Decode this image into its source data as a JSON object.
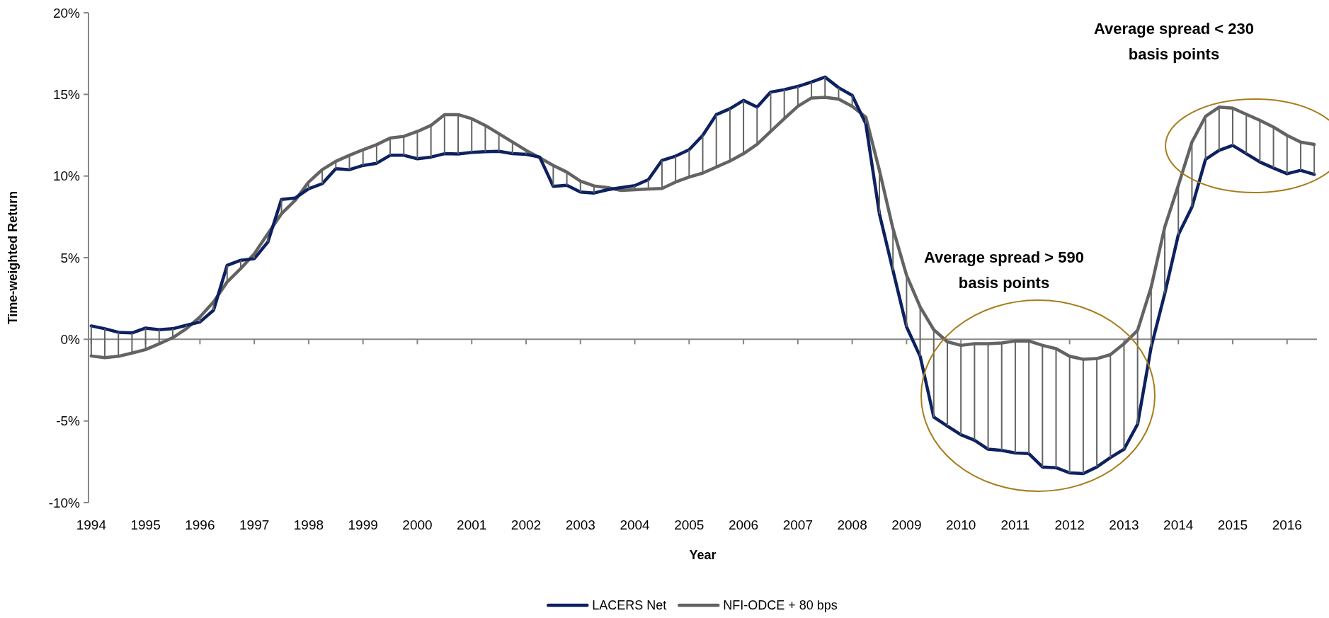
{
  "chart_data": {
    "type": "line",
    "xlabel": "Year",
    "ylabel": "Time-weighted Return",
    "x": [
      1994,
      1994.25,
      1994.5,
      1994.75,
      1995,
      1995.25,
      1995.5,
      1995.75,
      1996,
      1996.25,
      1996.5,
      1996.75,
      1997,
      1997.25,
      1997.5,
      1997.75,
      1998,
      1998.25,
      1998.5,
      1998.75,
      1999,
      1999.25,
      1999.5,
      1999.75,
      2000,
      2000.25,
      2000.5,
      2000.75,
      2001,
      2001.25,
      2001.5,
      2001.75,
      2002,
      2002.25,
      2002.5,
      2002.75,
      2003,
      2003.25,
      2003.5,
      2003.75,
      2004,
      2004.25,
      2004.5,
      2004.75,
      2005,
      2005.25,
      2005.5,
      2005.75,
      2006,
      2006.25,
      2006.5,
      2006.75,
      2007,
      2007.25,
      2007.5,
      2007.75,
      2008,
      2008.25,
      2008.5,
      2008.75,
      2009,
      2009.25,
      2009.5,
      2009.75,
      2010,
      2010.25,
      2010.5,
      2010.75,
      2011,
      2011.25,
      2011.5,
      2011.75,
      2012,
      2012.25,
      2012.5,
      2012.75,
      2013,
      2013.25,
      2013.5,
      2013.75,
      2014,
      2014.25,
      2014.5,
      2014.75,
      2015,
      2015.25,
      2015.5,
      2015.75,
      2016,
      2016.25,
      2016.5
    ],
    "series": [
      {
        "name": "LACERS Net",
        "color": "#0d2161",
        "values": [
          0.82,
          0.65,
          0.43,
          0.39,
          0.69,
          0.59,
          0.65,
          0.86,
          1.06,
          1.78,
          4.53,
          4.84,
          4.94,
          5.96,
          8.57,
          8.65,
          9.22,
          9.53,
          10.45,
          10.39,
          10.65,
          10.78,
          11.27,
          11.27,
          11.06,
          11.16,
          11.37,
          11.35,
          11.45,
          11.49,
          11.51,
          11.37,
          11.33,
          11.16,
          9.37,
          9.43,
          9.02,
          8.96,
          9.16,
          9.29,
          9.41,
          9.78,
          10.96,
          11.22,
          11.61,
          12.49,
          13.76,
          14.12,
          14.63,
          14.22,
          15.14,
          15.29,
          15.49,
          15.76,
          16.06,
          15.41,
          14.94,
          13.2,
          7.69,
          4.22,
          0.76,
          -1.04,
          -4.76,
          -5.31,
          -5.84,
          -6.18,
          -6.73,
          -6.8,
          -6.96,
          -7.0,
          -7.82,
          -7.86,
          -8.18,
          -8.22,
          -7.82,
          -7.24,
          -6.73,
          -5.2,
          -0.47,
          2.8,
          6.41,
          8.1,
          11.02,
          11.57,
          11.88,
          11.37,
          10.86,
          10.49,
          10.14,
          10.35,
          10.1
        ]
      },
      {
        "name": "NFI-ODCE + 80 bps",
        "color": "#636363",
        "values": [
          -1.02,
          -1.12,
          -1.04,
          -0.84,
          -0.63,
          -0.27,
          0.1,
          0.65,
          1.37,
          2.29,
          3.51,
          4.33,
          5.24,
          6.47,
          7.69,
          8.51,
          9.63,
          10.39,
          10.9,
          11.27,
          11.61,
          11.92,
          12.33,
          12.43,
          12.73,
          13.1,
          13.76,
          13.76,
          13.51,
          13.1,
          12.59,
          12.08,
          11.57,
          11.12,
          10.65,
          10.24,
          9.69,
          9.39,
          9.29,
          9.12,
          9.16,
          9.2,
          9.24,
          9.63,
          9.94,
          10.18,
          10.55,
          10.92,
          11.37,
          11.94,
          12.73,
          13.51,
          14.27,
          14.78,
          14.82,
          14.71,
          14.27,
          13.61,
          10.35,
          6.78,
          3.92,
          1.98,
          0.59,
          -0.15,
          -0.37,
          -0.27,
          -0.27,
          -0.22,
          -0.1,
          -0.1,
          -0.37,
          -0.57,
          -1.04,
          -1.22,
          -1.18,
          -0.94,
          -0.27,
          0.55,
          3.2,
          6.88,
          9.43,
          12.08,
          13.65,
          14.22,
          14.16,
          13.78,
          13.41,
          13.0,
          12.49,
          12.08,
          11.94
        ],
        "errors": [
          [
            -1.02,
            0.82
          ],
          [
            -1.12,
            0.65
          ],
          [
            -1.04,
            0.43
          ],
          [
            -0.84,
            0.39
          ],
          [
            -0.63,
            0.69
          ],
          [
            -0.27,
            0.59
          ],
          [
            0.1,
            0.65
          ],
          [
            0.65,
            0.86
          ],
          [
            1.06,
            1.37
          ],
          [
            1.78,
            2.29
          ],
          [
            3.51,
            4.53
          ],
          [
            4.33,
            4.84
          ],
          [
            4.94,
            5.24
          ],
          [
            5.96,
            6.47
          ],
          [
            7.69,
            8.57
          ],
          null,
          [
            9.22,
            9.63
          ],
          [
            9.53,
            10.39
          ],
          [
            10.45,
            10.9
          ],
          [
            10.39,
            11.27
          ],
          [
            10.65,
            11.61
          ],
          [
            10.78,
            11.92
          ],
          [
            11.27,
            12.33
          ],
          [
            11.27,
            12.43
          ],
          [
            11.06,
            12.73
          ],
          [
            11.16,
            13.1
          ],
          [
            11.37,
            13.76
          ],
          [
            11.35,
            13.76
          ],
          [
            11.45,
            13.51
          ],
          [
            11.49,
            13.1
          ],
          [
            11.51,
            12.59
          ],
          [
            11.37,
            12.08
          ],
          [
            11.33,
            11.57
          ],
          null,
          [
            9.37,
            10.65
          ],
          [
            9.43,
            10.24
          ],
          [
            9.02,
            9.69
          ],
          [
            8.96,
            9.39
          ],
          null,
          null,
          [
            9.16,
            9.41
          ],
          [
            9.2,
            9.78
          ],
          [
            9.24,
            10.96
          ],
          [
            9.63,
            11.22
          ],
          [
            9.94,
            11.61
          ],
          [
            10.18,
            12.49
          ],
          [
            10.55,
            13.76
          ],
          [
            10.92,
            14.12
          ],
          [
            11.37,
            14.63
          ],
          [
            11.94,
            14.22
          ],
          [
            12.73,
            15.14
          ],
          [
            13.51,
            15.29
          ],
          [
            14.27,
            15.49
          ],
          [
            14.78,
            15.76
          ],
          [
            14.82,
            16.06
          ],
          [
            14.71,
            15.41
          ],
          [
            14.27,
            14.94
          ],
          [
            13.2,
            13.61
          ],
          [
            7.69,
            10.35
          ],
          [
            4.22,
            6.78
          ],
          [
            0.76,
            3.92
          ],
          [
            -1.04,
            1.98
          ],
          [
            -4.76,
            0.59
          ],
          [
            -5.31,
            -0.15
          ],
          [
            -5.84,
            -0.37
          ],
          [
            -6.18,
            -0.27
          ],
          [
            -6.73,
            -0.27
          ],
          [
            -6.8,
            -0.22
          ],
          [
            -6.96,
            -0.1
          ],
          [
            -7.0,
            -0.1
          ],
          [
            -7.82,
            -0.37
          ],
          [
            -7.86,
            -0.57
          ],
          [
            -8.18,
            -1.04
          ],
          [
            -8.22,
            -1.22
          ],
          [
            -7.82,
            -1.18
          ],
          [
            -7.24,
            -0.94
          ],
          [
            -6.73,
            -0.27
          ],
          [
            -5.2,
            0.55
          ],
          [
            -0.47,
            3.2
          ],
          [
            2.8,
            6.88
          ],
          [
            6.41,
            9.43
          ],
          [
            8.1,
            12.08
          ],
          [
            11.02,
            13.65
          ],
          [
            11.57,
            14.22
          ],
          [
            11.88,
            14.16
          ],
          [
            11.37,
            13.78
          ],
          [
            10.86,
            13.41
          ],
          [
            10.49,
            13.0
          ],
          [
            10.14,
            12.49
          ],
          [
            10.35,
            12.08
          ],
          [
            10.1,
            11.94
          ]
        ]
      }
    ],
    "xlim": [
      1993.95,
      2016.55
    ],
    "xticks": [
      1994,
      1995,
      1996,
      1997,
      1998,
      1999,
      2000,
      2001,
      2002,
      2003,
      2004,
      2005,
      2006,
      2007,
      2008,
      2009,
      2010,
      2011,
      2012,
      2013,
      2014,
      2015,
      2016
    ],
    "ylim": [
      -10,
      20
    ],
    "yticks": [
      {
        "value": -10,
        "label": "-10%"
      },
      {
        "value": -5,
        "label": "-5%"
      },
      {
        "value": 0,
        "label": "0%"
      },
      {
        "value": 5,
        "label": "5%"
      },
      {
        "value": 10,
        "label": "10%"
      },
      {
        "value": 15,
        "label": "15%"
      },
      {
        "value": 20,
        "label": "20%"
      }
    ],
    "grid": false,
    "legend": "bottom",
    "marker": "none",
    "line_style": "solid",
    "ref_lines": [
      {
        "axis": "y",
        "value": 0,
        "color": "#868686"
      }
    ],
    "annotations": [
      "Average spread > 590 basis points",
      "Average spread < 230 basis points"
    ]
  }
}
